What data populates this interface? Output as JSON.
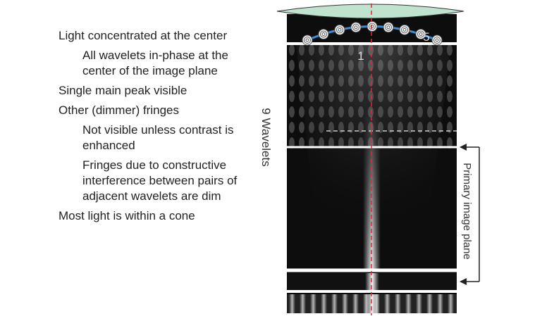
{
  "bullets": [
    {
      "text": "Light concentrated at the center",
      "sub": [
        "All wavelets in-phase at the center of the image plane"
      ]
    },
    {
      "text": "Single main peak visible",
      "sub": []
    },
    {
      "text": "Other (dimmer) fringes",
      "sub": [
        "Not visible unless contrast is enhanced",
        "Fringes due to constructive interference between pairs of adjacent wavelets are dim"
      ]
    },
    {
      "text": "Most light is within a cone",
      "sub": []
    }
  ],
  "labels": {
    "wavelets": "9 Wavelets",
    "image_plane": "Primary image plane",
    "marker_first": "1",
    "marker_fifth": "5"
  }
}
